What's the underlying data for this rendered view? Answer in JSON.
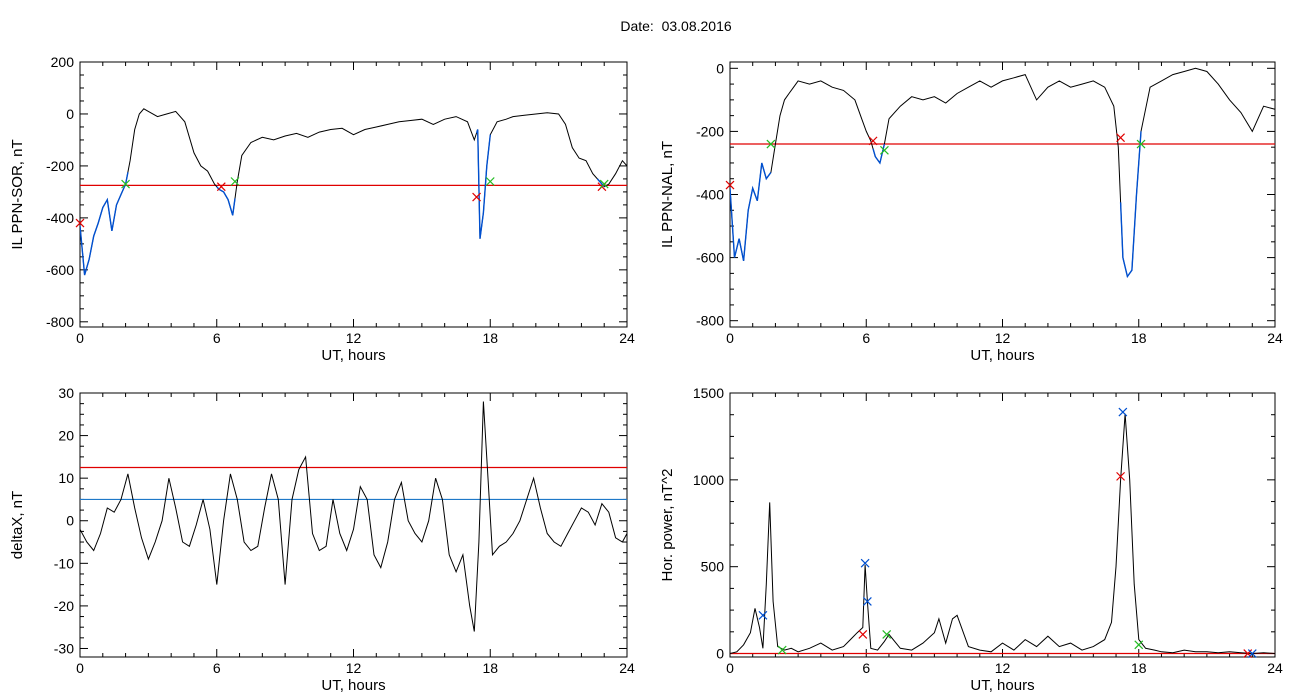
{
  "date_label": "Date:  03.08.2016",
  "colors": {
    "trace": "#000000",
    "threshold": "#e00000",
    "highlight": "#0050d0",
    "end_marker": "#22bb22",
    "blue_threshold": "#1e78c8"
  },
  "chart_data": [
    {
      "type": "line",
      "title": "",
      "xlabel": "UT, hours",
      "ylabel": "IL PPN-SOR, nT",
      "xlim": [
        0,
        24
      ],
      "ylim": [
        -820,
        200
      ],
      "xticks": [
        0,
        6,
        12,
        18,
        24
      ],
      "xtick_labels": [
        "0",
        "6",
        "12",
        "18",
        "24"
      ],
      "yticks": [
        -800,
        -600,
        -400,
        -200,
        0,
        200
      ],
      "ytick_labels": [
        "-800",
        "-600",
        "-400",
        "-200",
        "0",
        "200"
      ],
      "hlines": [
        {
          "y": -275,
          "color": "red"
        }
      ],
      "series": [
        {
          "x": [
            0,
            0.2,
            0.4,
            0.6,
            0.8,
            1.0,
            1.2,
            1.4,
            1.6,
            1.8,
            2.0,
            2.2,
            2.4,
            2.6,
            2.8,
            3.0,
            3.4,
            3.8,
            4.2,
            4.6,
            5.0,
            5.3,
            5.6,
            5.9,
            6.1,
            6.3,
            6.5,
            6.7,
            6.9,
            7.1,
            7.5,
            8.0,
            8.5,
            9.0,
            9.5,
            10.0,
            10.5,
            11.0,
            11.5,
            12.0,
            12.5,
            13.0,
            13.5,
            14.0,
            14.5,
            15.0,
            15.5,
            16.0,
            16.5,
            17.0,
            17.3,
            17.45,
            17.55,
            17.7,
            17.85,
            18.0,
            18.3,
            18.7,
            19.0,
            19.5,
            20.0,
            20.5,
            21.0,
            21.3,
            21.6,
            21.9,
            22.2,
            22.5,
            22.8,
            23.0,
            23.2,
            23.5,
            23.8,
            24.0
          ],
          "y": [
            -430,
            -620,
            -560,
            -470,
            -420,
            -360,
            -330,
            -450,
            -350,
            -310,
            -270,
            -180,
            -60,
            0,
            20,
            10,
            -10,
            0,
            10,
            -30,
            -150,
            -200,
            -220,
            -270,
            -290,
            -300,
            -330,
            -390,
            -260,
            -160,
            -110,
            -90,
            -100,
            -85,
            -75,
            -90,
            -70,
            -60,
            -55,
            -80,
            -60,
            -50,
            -40,
            -30,
            -25,
            -20,
            -40,
            -20,
            -10,
            -30,
            -100,
            -60,
            -480,
            -380,
            -200,
            -80,
            -30,
            -20,
            -10,
            -5,
            0,
            5,
            0,
            -40,
            -130,
            -170,
            -180,
            -230,
            -260,
            -280,
            -270,
            -230,
            -180,
            -200
          ]
        }
      ],
      "highlight_segments": [
        [
          0,
          2.1
        ],
        [
          6.0,
          6.8
        ],
        [
          17.4,
          18.0
        ],
        [
          22.7,
          23.0
        ]
      ],
      "start_markers": [
        {
          "x": 0.0,
          "y": -420
        },
        {
          "x": 6.2,
          "y": -280
        },
        {
          "x": 17.4,
          "y": -320
        },
        {
          "x": 22.9,
          "y": -280
        }
      ],
      "end_markers": [
        {
          "x": 2.0,
          "y": -270
        },
        {
          "x": 6.8,
          "y": -260
        },
        {
          "x": 18.0,
          "y": -260
        },
        {
          "x": 23.0,
          "y": -270
        }
      ]
    },
    {
      "type": "line",
      "title": "",
      "xlabel": "UT, hours",
      "ylabel": "IL PPN-NAL, nT",
      "xlim": [
        0,
        24
      ],
      "ylim": [
        -820,
        20
      ],
      "xticks": [
        0,
        6,
        12,
        18,
        24
      ],
      "xtick_labels": [
        "0",
        "6",
        "12",
        "18",
        "24"
      ],
      "yticks": [
        -800,
        -600,
        -400,
        -200,
        0
      ],
      "ytick_labels": [
        "-800",
        "-600",
        "-400",
        "-200",
        "0"
      ],
      "hlines": [
        {
          "y": -240,
          "color": "red"
        }
      ],
      "series": [
        {
          "x": [
            0,
            0.2,
            0.4,
            0.6,
            0.8,
            1.0,
            1.2,
            1.4,
            1.6,
            1.8,
            2.0,
            2.2,
            2.4,
            2.6,
            2.8,
            3.0,
            3.5,
            4.0,
            4.5,
            5.0,
            5.5,
            5.8,
            6.0,
            6.2,
            6.4,
            6.6,
            6.8,
            7.0,
            7.5,
            8.0,
            8.5,
            9.0,
            9.5,
            10.0,
            10.5,
            11.0,
            11.5,
            12.0,
            12.5,
            13.0,
            13.5,
            14.0,
            14.5,
            15.0,
            15.5,
            16.0,
            16.5,
            16.9,
            17.1,
            17.3,
            17.5,
            17.7,
            17.9,
            18.1,
            18.5,
            19.0,
            19.5,
            20.0,
            20.5,
            21.0,
            21.5,
            22.0,
            22.5,
            23.0,
            23.5,
            24.0
          ],
          "y": [
            -380,
            -600,
            -540,
            -610,
            -450,
            -380,
            -420,
            -300,
            -350,
            -330,
            -240,
            -150,
            -100,
            -80,
            -60,
            -40,
            -50,
            -40,
            -60,
            -70,
            -100,
            -160,
            -200,
            -230,
            -280,
            -300,
            -240,
            -160,
            -120,
            -90,
            -100,
            -90,
            -110,
            -80,
            -60,
            -40,
            -60,
            -40,
            -30,
            -20,
            -100,
            -60,
            -40,
            -60,
            -50,
            -40,
            -60,
            -120,
            -250,
            -600,
            -660,
            -640,
            -400,
            -200,
            -60,
            -40,
            -20,
            -10,
            0,
            -10,
            -50,
            -100,
            -140,
            -200,
            -120,
            -130
          ]
        }
      ],
      "highlight_segments": [
        [
          0,
          1.8
        ],
        [
          6.3,
          6.8
        ],
        [
          17.2,
          18.1
        ]
      ],
      "start_markers": [
        {
          "x": 0.0,
          "y": -370
        },
        {
          "x": 6.3,
          "y": -230
        },
        {
          "x": 17.2,
          "y": -220
        }
      ],
      "end_markers": [
        {
          "x": 1.8,
          "y": -240
        },
        {
          "x": 6.8,
          "y": -260
        },
        {
          "x": 18.1,
          "y": -240
        }
      ]
    },
    {
      "type": "line",
      "title": "",
      "xlabel": "UT, hours",
      "ylabel": "deltaX, nT",
      "xlim": [
        0,
        24
      ],
      "ylim": [
        -32,
        30
      ],
      "xticks": [
        0,
        6,
        12,
        18,
        24
      ],
      "xtick_labels": [
        "0",
        "6",
        "12",
        "18",
        "24"
      ],
      "yticks": [
        -30,
        -20,
        -10,
        0,
        10,
        20,
        30
      ],
      "ytick_labels": [
        "-30",
        "-20",
        "-10",
        "0",
        "10",
        "20",
        "30"
      ],
      "hlines": [
        {
          "y": 12.5,
          "color": "red"
        },
        {
          "y": 5,
          "color": "blue"
        }
      ],
      "series": [
        {
          "x": [
            0,
            0.3,
            0.6,
            0.9,
            1.2,
            1.5,
            1.8,
            2.1,
            2.4,
            2.7,
            3.0,
            3.3,
            3.6,
            3.9,
            4.2,
            4.5,
            4.8,
            5.1,
            5.4,
            5.7,
            6.0,
            6.3,
            6.6,
            6.9,
            7.2,
            7.5,
            7.8,
            8.1,
            8.4,
            8.7,
            9.0,
            9.3,
            9.6,
            9.9,
            10.2,
            10.5,
            10.8,
            11.1,
            11.4,
            11.7,
            12.0,
            12.3,
            12.6,
            12.9,
            13.2,
            13.5,
            13.8,
            14.1,
            14.4,
            14.7,
            15.0,
            15.3,
            15.6,
            15.9,
            16.2,
            16.5,
            16.8,
            17.1,
            17.3,
            17.5,
            17.7,
            17.9,
            18.1,
            18.4,
            18.7,
            19.0,
            19.3,
            19.6,
            19.9,
            20.2,
            20.5,
            20.8,
            21.1,
            21.4,
            21.7,
            22.0,
            22.3,
            22.6,
            22.9,
            23.2,
            23.5,
            23.8,
            24.0
          ],
          "y": [
            -2,
            -5,
            -7,
            -3,
            3,
            2,
            5,
            11,
            3,
            -4,
            -9,
            -5,
            0,
            10,
            3,
            -5,
            -6,
            -1,
            5,
            -2,
            -15,
            0,
            11,
            5,
            -5,
            -7,
            -6,
            3,
            11,
            5,
            -15,
            5,
            12,
            15,
            -3,
            -7,
            -6,
            5,
            -3,
            -7,
            -2,
            8,
            5,
            -8,
            -11,
            -5,
            5,
            9,
            0,
            -3,
            -5,
            0,
            10,
            5,
            -8,
            -12,
            -8,
            -20,
            -26,
            -5,
            28,
            10,
            -8,
            -6,
            -5,
            -3,
            0,
            5,
            10,
            3,
            -3,
            -5,
            -6,
            -3,
            0,
            3,
            2,
            -1,
            4,
            2,
            -4,
            -5,
            -3
          ]
        }
      ]
    },
    {
      "type": "line",
      "title": "",
      "xlabel": "UT, hours",
      "ylabel": "Hor. power, nT^2",
      "xlim": [
        0,
        24
      ],
      "ylim": [
        -20,
        1500
      ],
      "xticks": [
        0,
        6,
        12,
        18,
        24
      ],
      "xtick_labels": [
        "0",
        "6",
        "12",
        "18",
        "24"
      ],
      "yticks": [
        0,
        500,
        1000,
        1500
      ],
      "ytick_labels": [
        "0",
        "500",
        "1000",
        "1500"
      ],
      "hlines": [
        {
          "y": 0,
          "color": "red"
        }
      ],
      "series": [
        {
          "x": [
            0,
            0.3,
            0.6,
            0.9,
            1.1,
            1.3,
            1.45,
            1.6,
            1.75,
            1.9,
            2.1,
            2.4,
            2.7,
            3.0,
            3.5,
            4.0,
            4.5,
            5.0,
            5.3,
            5.6,
            5.85,
            5.95,
            6.05,
            6.2,
            6.5,
            6.8,
            7.0,
            7.5,
            8.0,
            8.5,
            9.0,
            9.2,
            9.5,
            9.8,
            10.0,
            10.5,
            11.0,
            11.5,
            12.0,
            12.5,
            13.0,
            13.5,
            14.0,
            14.5,
            15.0,
            15.5,
            16.0,
            16.5,
            16.8,
            17.0,
            17.2,
            17.4,
            17.6,
            17.8,
            18.0,
            18.3,
            18.7,
            19.0,
            19.5,
            20.0,
            20.5,
            21.0,
            21.5,
            22.0,
            22.5,
            23.0,
            23.5,
            24.0
          ],
          "y": [
            0,
            10,
            50,
            120,
            260,
            150,
            30,
            400,
            870,
            300,
            40,
            20,
            30,
            10,
            30,
            60,
            20,
            40,
            80,
            120,
            150,
            510,
            300,
            30,
            20,
            70,
            110,
            30,
            20,
            60,
            120,
            200,
            60,
            200,
            220,
            40,
            20,
            10,
            60,
            20,
            80,
            40,
            100,
            40,
            60,
            20,
            40,
            80,
            180,
            500,
            1000,
            1380,
            1000,
            400,
            80,
            30,
            20,
            10,
            5,
            20,
            10,
            10,
            5,
            10,
            5,
            0,
            5,
            0
          ]
        }
      ],
      "blue_markers": [
        {
          "x": 1.45,
          "y": 220
        },
        {
          "x": 5.95,
          "y": 520
        },
        {
          "x": 6.05,
          "y": 300
        },
        {
          "x": 17.3,
          "y": 1390
        },
        {
          "x": 23.0,
          "y": 0
        }
      ],
      "red_markers": [
        {
          "x": 5.85,
          "y": 110
        },
        {
          "x": 17.2,
          "y": 1020
        },
        {
          "x": 22.8,
          "y": 0
        }
      ],
      "green_markers": [
        {
          "x": 2.3,
          "y": 20
        },
        {
          "x": 6.9,
          "y": 110
        },
        {
          "x": 18.0,
          "y": 50
        }
      ]
    }
  ]
}
